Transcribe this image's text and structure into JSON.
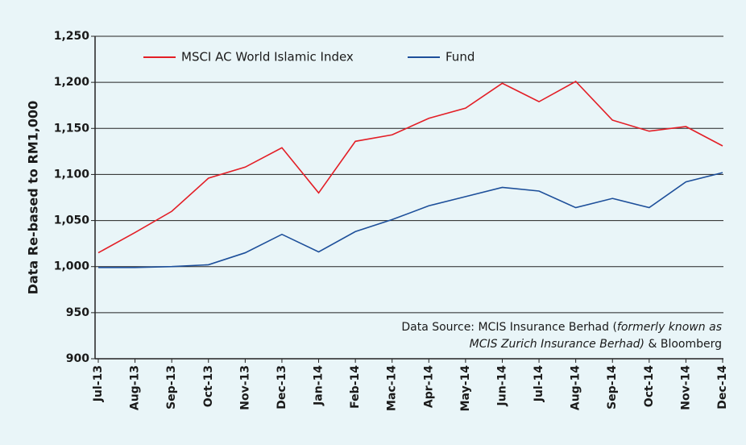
{
  "chart_data": {
    "type": "line",
    "y_axis_label": "Data Re-based to RM1,000",
    "categories": [
      "Jul-13",
      "Aug-13",
      "Sep-13",
      "Oct-13",
      "Nov-13",
      "Dec-13",
      "Jan-14",
      "Feb-14",
      "Mac-14",
      "Apr-14",
      "May-14",
      "Jun-14",
      "Jul-14",
      "Aug-14",
      "Sep-14",
      "Oct-14",
      "Nov-14",
      "Dec-14"
    ],
    "series": [
      {
        "name": "MSCI AC World Islamic Index",
        "color": "#e31e26",
        "values": [
          1015,
          1037,
          1060,
          1096,
          1108,
          1129,
          1080,
          1136,
          1143,
          1161,
          1172,
          1199,
          1179,
          1201,
          1159,
          1147,
          1152,
          1131
        ]
      },
      {
        "name": "Fund",
        "color": "#1d4f9a",
        "values": [
          999,
          999,
          1000,
          1002,
          1015,
          1035,
          1016,
          1038,
          1051,
          1066,
          1076,
          1086,
          1082,
          1064,
          1074,
          1064,
          1092,
          1102
        ]
      }
    ],
    "ylim": [
      900,
      1250
    ],
    "yticks": [
      900,
      950,
      {
        "value": 1000,
        "label": "1,000"
      },
      {
        "value": 1050,
        "label": "1,050"
      },
      {
        "value": 1100,
        "label": "1,100"
      },
      {
        "value": 1150,
        "label": "1,150"
      },
      {
        "value": 1200,
        "label": "1,200"
      },
      {
        "value": 1250,
        "label": "1,250"
      }
    ],
    "grid": true,
    "annotation": [
      "Data Source: MCIS Insurance Berhad (",
      "formerly known as",
      "MCIS Zurich Insurance Berhad)",
      " & Bloomberg"
    ]
  }
}
